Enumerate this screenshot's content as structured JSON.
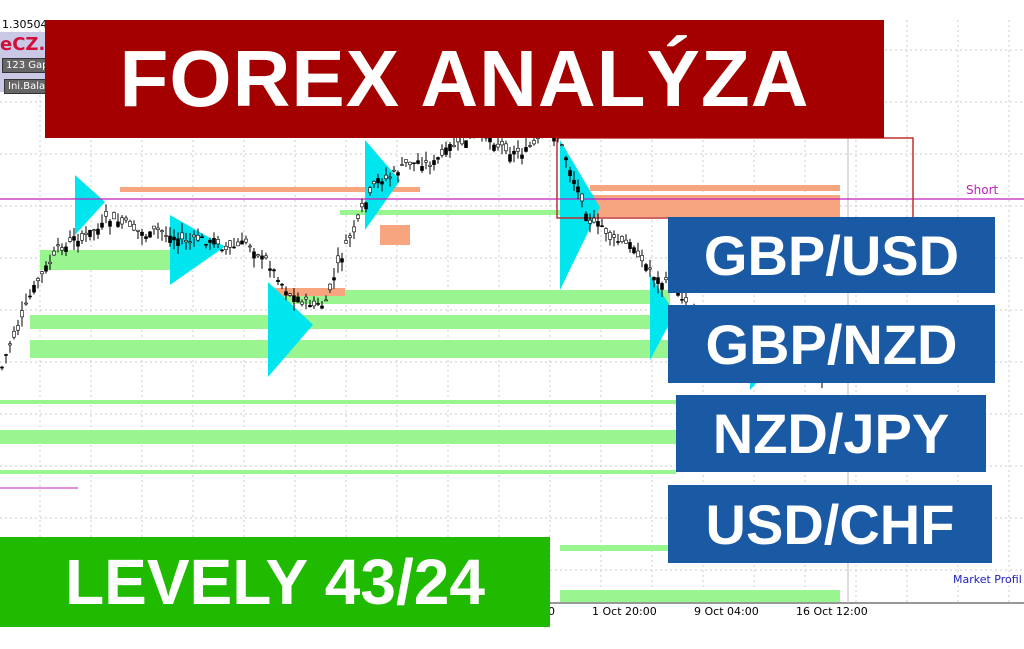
{
  "chart": {
    "top_price": "1.30504",
    "short_label": "Short",
    "indicator_label": "Market Profil",
    "x_ticks": [
      "0",
      "1 Oct 20:00",
      "9 Oct 04:00",
      "16 Oct 12:00"
    ],
    "colors": {
      "short_line": "#c020c0",
      "value_area": "#99f58f",
      "profile": "#00e5ee",
      "sell_zone": "#f7a57e",
      "candles": "#000000"
    }
  },
  "panel": {
    "brand": "eCZ.",
    "gap_button": "123 Gap",
    "balance_button": "Ini.Balanc"
  },
  "overlay": {
    "title": "FOREX ANALÝZA",
    "pairs": [
      "GBP/USD",
      "GBP/NZD",
      "NZD/JPY",
      "USD/CHF"
    ],
    "levels": "LEVELY 43/24",
    "colors": {
      "title_bg": "#a50000",
      "pairs_bg": "#1a5aa5",
      "levels_bg": "#20bb00"
    }
  }
}
